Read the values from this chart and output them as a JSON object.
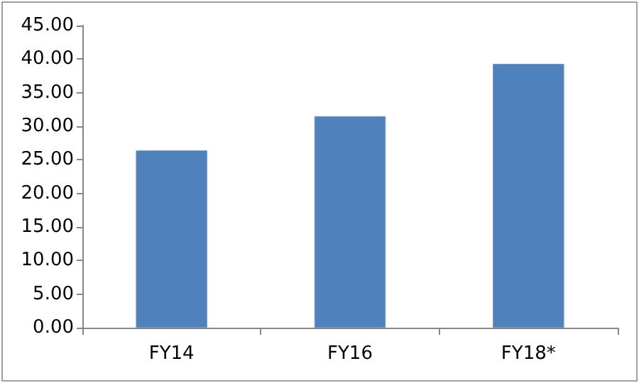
{
  "chart_data": {
    "type": "bar",
    "categories": [
      "FY14",
      "FY16",
      "FY18*"
    ],
    "values": [
      26.4,
      31.5,
      39.3
    ],
    "color": "#4f81bd",
    "ylim": [
      0,
      45
    ],
    "yticks": [
      {
        "value": 0,
        "label": "0.00"
      },
      {
        "value": 5,
        "label": "5.00"
      },
      {
        "value": 10,
        "label": "10.00"
      },
      {
        "value": 15,
        "label": "15.00"
      },
      {
        "value": 20,
        "label": "20.00"
      },
      {
        "value": 25,
        "label": "25.00"
      },
      {
        "value": 30,
        "label": "30.00"
      },
      {
        "value": 35,
        "label": "35.00"
      },
      {
        "value": 40,
        "label": "40.00"
      },
      {
        "value": 45,
        "label": "45.00"
      }
    ],
    "grid": false
  }
}
